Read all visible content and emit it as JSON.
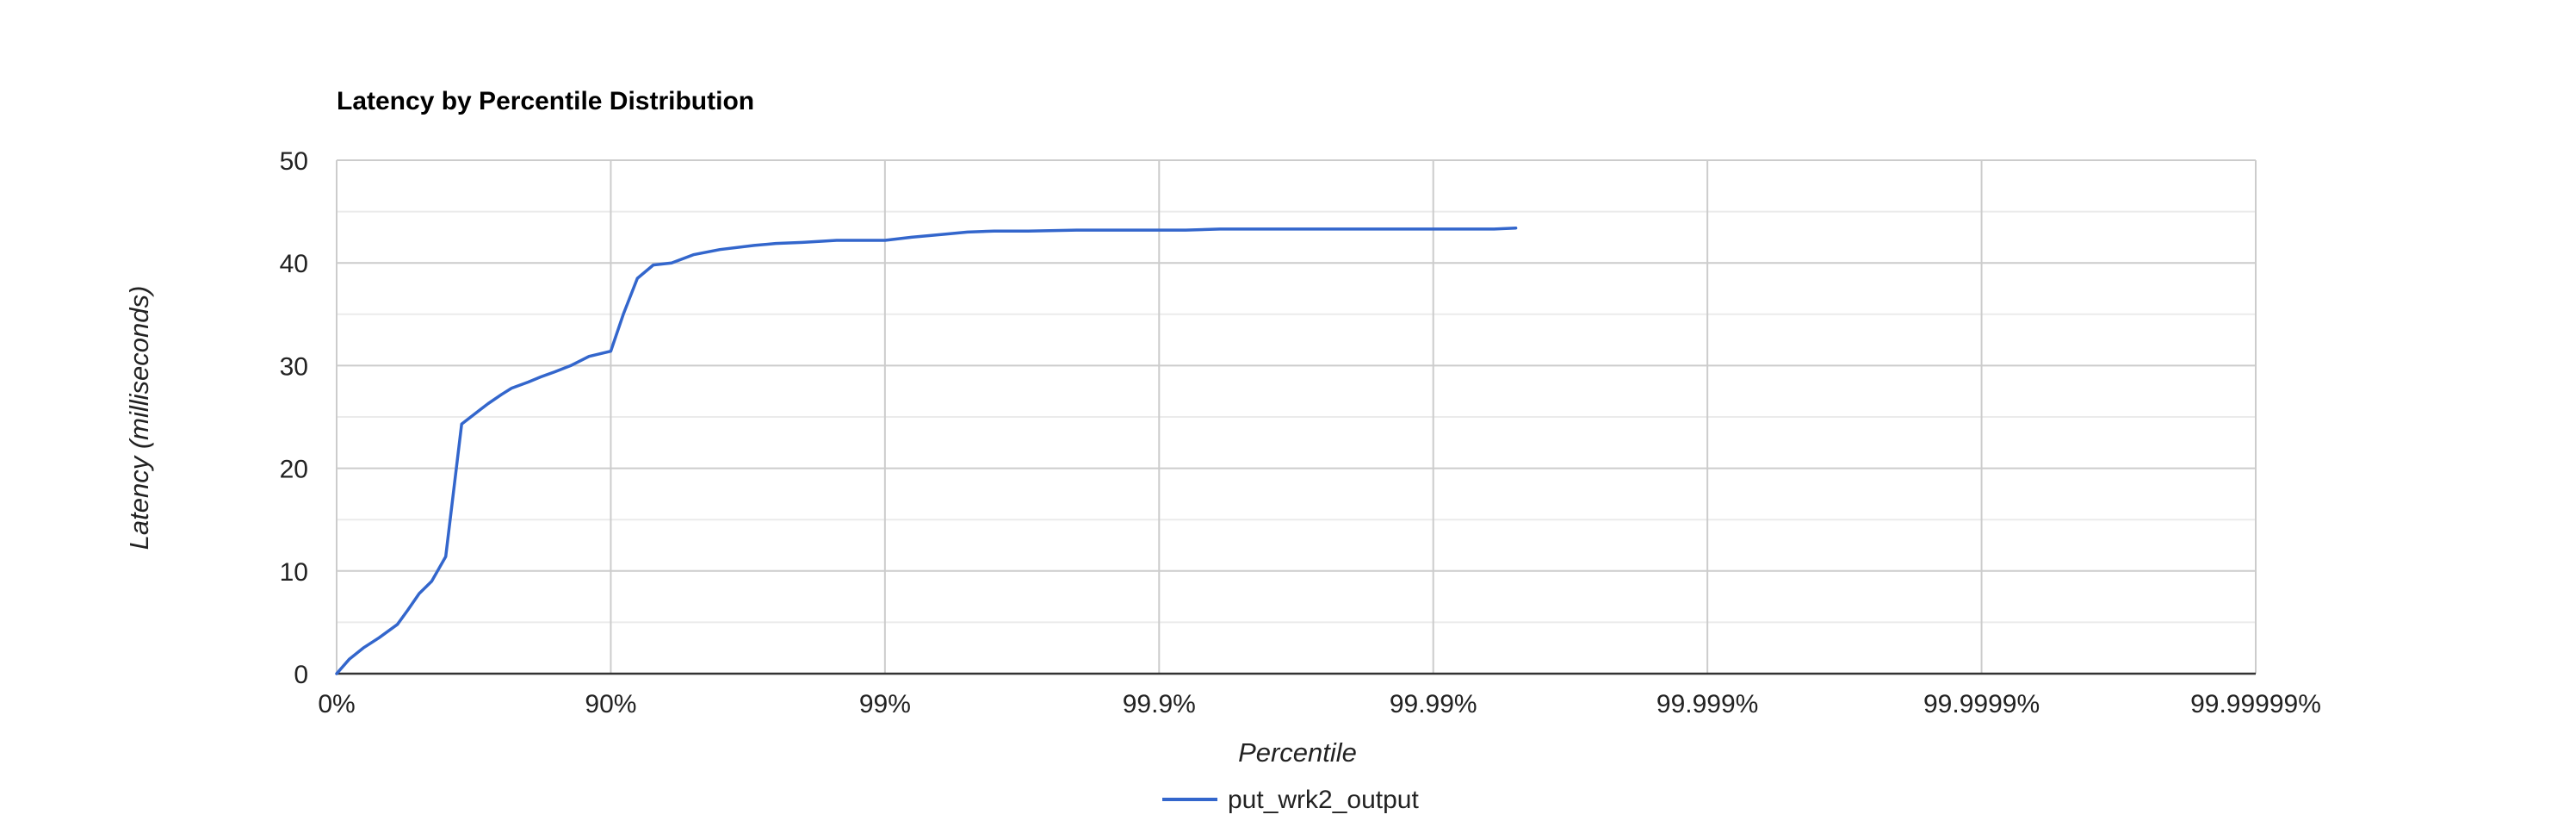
{
  "chart_data": {
    "type": "line",
    "title": "Latency by Percentile Distribution",
    "xlabel": "Percentile",
    "ylabel": "Latency (milliseconds)",
    "x_scale": "inverse-log (1/(1-percentile))",
    "x_tick_labels": [
      "0%",
      "90%",
      "99%",
      "99.9%",
      "99.99%",
      "99.999%",
      "99.9999%",
      "99.99999%"
    ],
    "y_ticks": [
      0,
      10,
      20,
      30,
      40,
      50
    ],
    "ylim": [
      0,
      50
    ],
    "grid": true,
    "legend_position": "bottom",
    "series": [
      {
        "name": "put_wrk2_output",
        "color": "#3366cc",
        "x": [
          0,
          10,
          20,
          30,
          40,
          45,
          50,
          55,
          60,
          65,
          70,
          72,
          75,
          77,
          80,
          82,
          84,
          86,
          88,
          90,
          91,
          92,
          93,
          94,
          95,
          96,
          97,
          97.5,
          98,
          98.5,
          99,
          99.2,
          99.4,
          99.5,
          99.6,
          99.7,
          99.8,
          99.9,
          99.92,
          99.94,
          99.96,
          99.97,
          99.98,
          99.99,
          99.992,
          99.994,
          99.995
        ],
        "y": [
          0,
          1.4,
          2.5,
          3.5,
          4.8,
          6.2,
          7.8,
          9.0,
          11.4,
          24.3,
          25.7,
          26.3,
          27.2,
          27.8,
          28.4,
          28.9,
          29.4,
          30.0,
          30.9,
          31.4,
          35.0,
          38.5,
          39.8,
          40.0,
          40.8,
          41.3,
          41.7,
          41.9,
          42.0,
          42.2,
          42.2,
          42.5,
          42.8,
          43.0,
          43.1,
          43.1,
          43.2,
          43.2,
          43.2,
          43.3,
          43.3,
          43.3,
          43.3,
          43.3,
          43.3,
          43.3,
          43.4
        ]
      }
    ]
  }
}
